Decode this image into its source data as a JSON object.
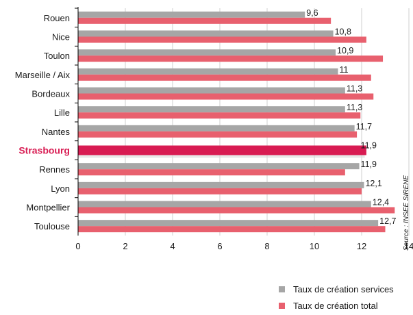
{
  "chart_data": {
    "type": "bar",
    "orientation": "horizontal",
    "categories": [
      "Rouen",
      "Nice",
      "Toulon",
      "Marseille / Aix",
      "Bordeaux",
      "Lille",
      "Nantes",
      "Strasbourg",
      "Rennes",
      "Lyon",
      "Montpellier",
      "Toulouse"
    ],
    "highlight": "Strasbourg",
    "series": [
      {
        "name": "Taux de création services",
        "values": [
          9.6,
          10.8,
          10.9,
          11,
          11.3,
          11.3,
          11.7,
          11.9,
          11.9,
          12.1,
          12.4,
          12.7
        ],
        "color": "#a6a6a6"
      },
      {
        "name": "Taux de création total",
        "values": [
          10.7,
          12.2,
          12.9,
          12.4,
          12.5,
          11.95,
          11.8,
          12.2,
          11.3,
          12.0,
          13.4,
          13.0
        ],
        "color": "#e8606e"
      }
    ],
    "highlight_color": "#d81b52",
    "value_labels": [
      "9,6",
      "10,8",
      "10,9",
      "11",
      "11,3",
      "11,3",
      "11,7",
      "11,9",
      "11,9",
      "12,1",
      "12,4",
      "12,7"
    ],
    "xlim": [
      0,
      14
    ],
    "xticks": [
      0,
      2,
      4,
      6,
      8,
      10,
      12,
      14
    ],
    "grid": true,
    "legend_position": "bottom-right",
    "source": "Source : INSEE SIRENE"
  }
}
